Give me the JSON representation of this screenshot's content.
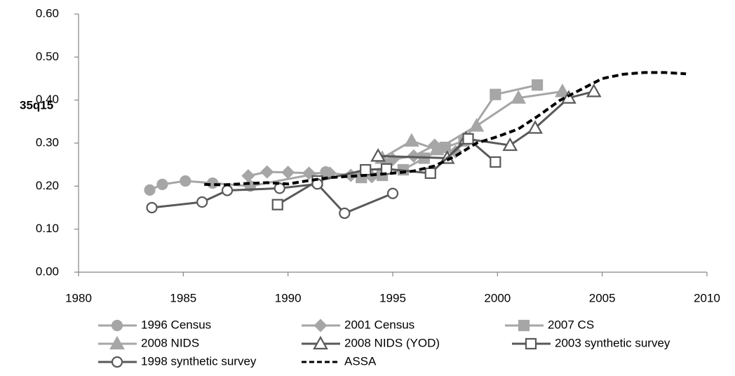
{
  "chart_data": {
    "type": "line",
    "ylabel": "35q15",
    "xlim": [
      1980,
      2010
    ],
    "xticks": [
      1980,
      1985,
      1990,
      1995,
      2000,
      2005,
      2010
    ],
    "ylim": [
      0,
      0.6
    ],
    "yticks": [
      {
        "value": 0,
        "label": "0.00"
      },
      {
        "value": 0.1,
        "label": "0.10"
      },
      {
        "value": 0.2,
        "label": "0.20"
      },
      {
        "value": 0.3,
        "label": "0.30"
      },
      {
        "value": 0.4,
        "label": "0.40"
      },
      {
        "value": 0.5,
        "label": "0.50"
      },
      {
        "value": 0.6,
        "label": "0.60"
      }
    ],
    "grid": false,
    "legend": "bottom",
    "series": [
      {
        "name": "1996 Census",
        "color": "#a6a6a6",
        "marker": "circle",
        "open": false,
        "dash": false,
        "x": [
          1983.4,
          1984.0,
          1985.1,
          1986.4,
          1988.2,
          1991.8
        ],
        "values": [
          0.191,
          0.204,
          0.212,
          0.207,
          0.2,
          0.233
        ]
      },
      {
        "name": "2001 Census",
        "color": "#a6a6a6",
        "marker": "diamond",
        "open": false,
        "dash": false,
        "x": [
          1988.1,
          1989.0,
          1990.0,
          1991.0,
          1992.0,
          1993.0,
          1994.0,
          1995.0,
          1996.0,
          1997.0,
          1998.0
        ],
        "values": [
          0.224,
          0.233,
          0.232,
          0.23,
          0.23,
          0.225,
          0.222,
          0.262,
          0.27,
          0.295,
          0.28
        ]
      },
      {
        "name": "2007 CS",
        "color": "#a6a6a6",
        "marker": "square",
        "open": false,
        "dash": false,
        "x": [
          1993.5,
          1994.5,
          1995.5,
          1996.5,
          1997.5,
          1998.4,
          1999.9,
          2001.9
        ],
        "values": [
          0.22,
          0.225,
          0.238,
          0.265,
          0.29,
          0.305,
          0.413,
          0.435
        ]
      },
      {
        "name": "2008 NIDS",
        "color": "#a6a6a6",
        "marker": "triangle",
        "open": false,
        "dash": false,
        "x": [
          1994.5,
          1995.9,
          1997.1,
          1999.0,
          2001.0,
          2003.1
        ],
        "values": [
          0.265,
          0.305,
          0.285,
          0.34,
          0.405,
          0.42
        ]
      },
      {
        "name": "2008 NIDS (YOD)",
        "color": "#595959",
        "marker": "triangle",
        "open": true,
        "dash": false,
        "x": [
          1994.3,
          1997.6,
          1998.5,
          2000.6,
          2001.8,
          2003.4,
          2004.6
        ],
        "values": [
          0.27,
          0.265,
          0.31,
          0.295,
          0.335,
          0.405,
          0.42
        ]
      },
      {
        "name": "2003 synthetic survey",
        "color": "#595959",
        "marker": "square",
        "open": true,
        "dash": false,
        "x": [
          1989.5,
          1991.4,
          1993.7,
          1994.7,
          1996.8,
          1998.6,
          1999.9
        ],
        "values": [
          0.157,
          0.212,
          0.238,
          0.24,
          0.23,
          0.31,
          0.256
        ]
      },
      {
        "name": "1998 synthetic survey",
        "color": "#595959",
        "marker": "circle",
        "open": true,
        "dash": false,
        "x": [
          1983.5,
          1985.9,
          1987.1,
          1989.6,
          1991.4,
          1992.7,
          1995.0
        ],
        "values": [
          0.15,
          0.163,
          0.19,
          0.195,
          0.205,
          0.137,
          0.183
        ]
      },
      {
        "name": "ASSA",
        "color": "#000000",
        "marker": "none",
        "open": false,
        "dash": true,
        "x": [
          1986,
          1987,
          1988,
          1989,
          1990,
          1991,
          1992,
          1993,
          1994,
          1995,
          1996,
          1997,
          1998,
          1999,
          2000,
          2001,
          2002,
          2003,
          2004,
          2005,
          2006,
          2007,
          2008,
          2009
        ],
        "values": [
          0.204,
          0.203,
          0.206,
          0.208,
          0.205,
          0.213,
          0.22,
          0.223,
          0.226,
          0.23,
          0.235,
          0.247,
          0.27,
          0.3,
          0.315,
          0.333,
          0.365,
          0.4,
          0.425,
          0.45,
          0.46,
          0.464,
          0.464,
          0.461
        ]
      }
    ]
  }
}
